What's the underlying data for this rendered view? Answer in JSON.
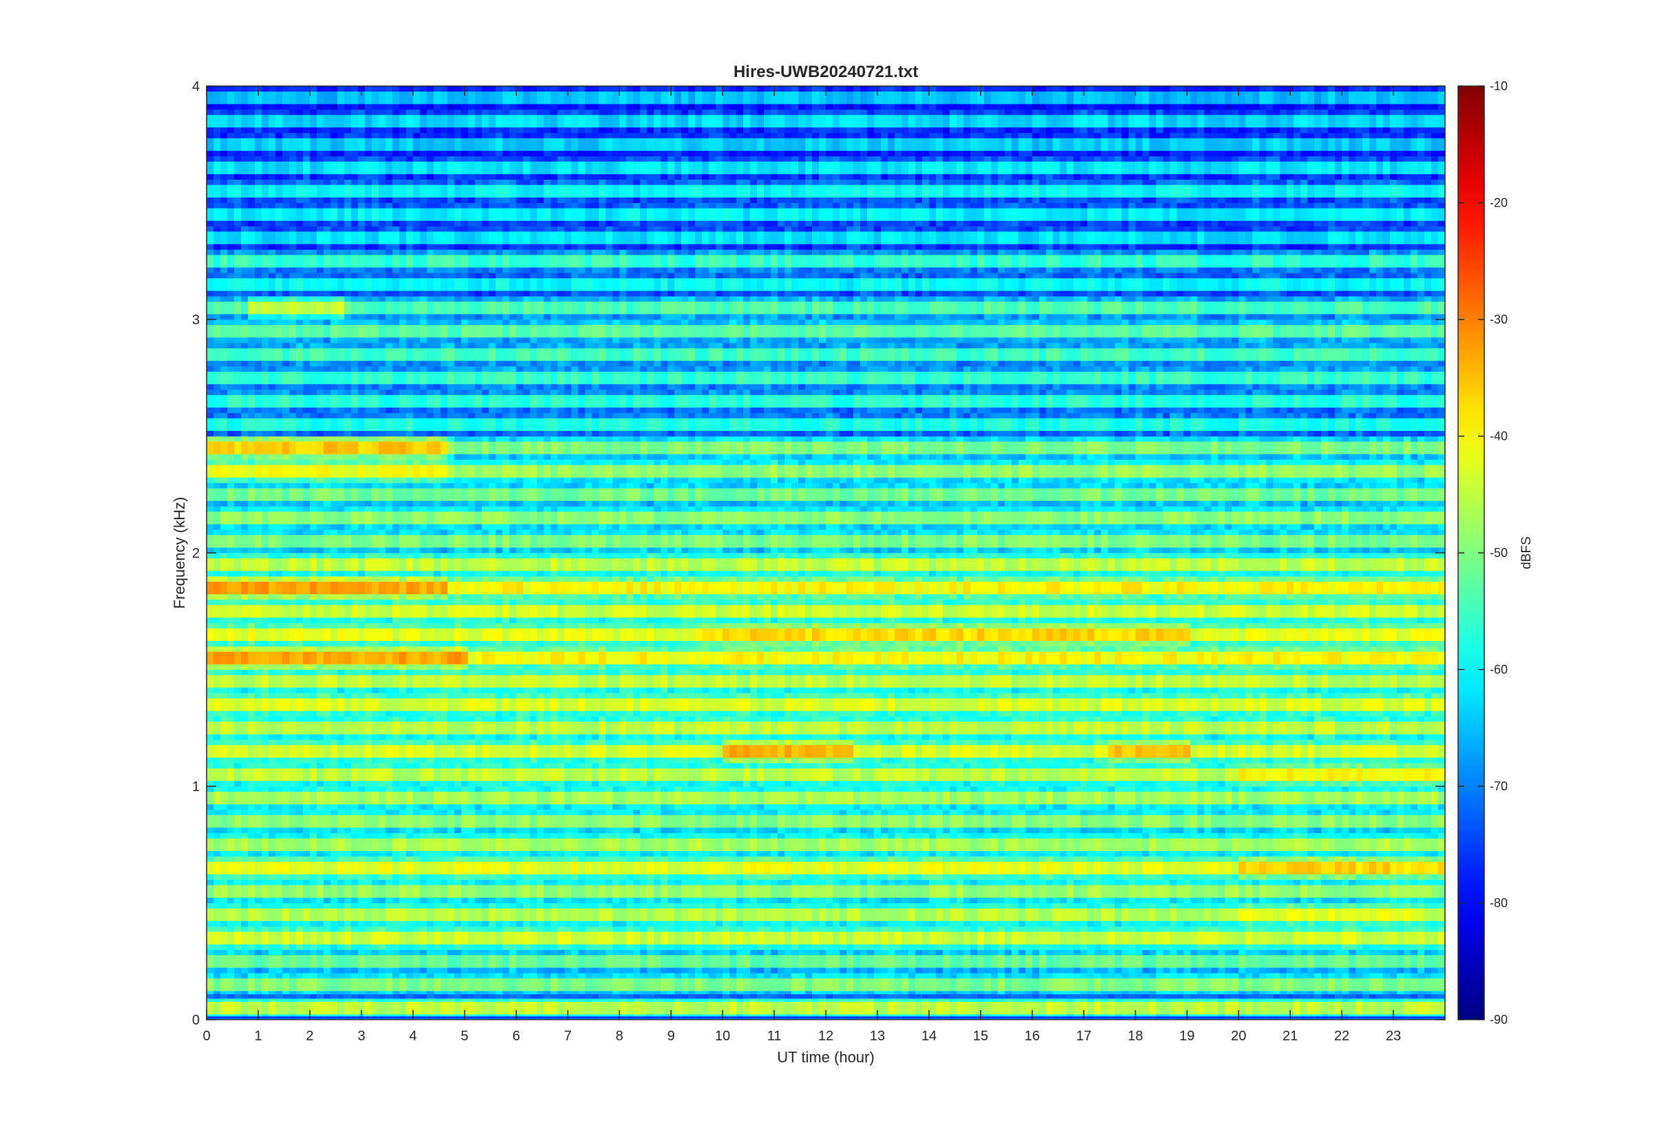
{
  "chart_data": {
    "type": "heatmap",
    "title": "Hires-UWB20240721.txt",
    "xlabel": "UT time (hour)",
    "ylabel": "Frequency (kHz)",
    "xlim": [
      0,
      24
    ],
    "ylim": [
      0,
      4
    ],
    "x_ticks": [
      0,
      1,
      2,
      3,
      4,
      5,
      6,
      7,
      8,
      9,
      10,
      11,
      12,
      13,
      14,
      15,
      16,
      17,
      18,
      19,
      20,
      21,
      22,
      23
    ],
    "y_ticks": [
      0,
      1,
      2,
      3,
      4
    ],
    "colormap": "jet",
    "colorbar": {
      "label": "dBFS",
      "clim": [
        -90,
        -10
      ],
      "ticks": [
        -10,
        -20,
        -30,
        -40,
        -50,
        -60,
        -70,
        -80,
        -90
      ]
    },
    "grid": false,
    "band_spacing_khz": 0.1,
    "band_levels_dbfs": [
      {
        "freq_khz": 0.05,
        "level": -45
      },
      {
        "freq_khz": 0.15,
        "level": -50
      },
      {
        "freq_khz": 0.25,
        "level": -52
      },
      {
        "freq_khz": 0.35,
        "level": -44
      },
      {
        "freq_khz": 0.45,
        "level": -46
      },
      {
        "freq_khz": 0.55,
        "level": -48
      },
      {
        "freq_khz": 0.65,
        "level": -42
      },
      {
        "freq_khz": 0.75,
        "level": -47
      },
      {
        "freq_khz": 0.85,
        "level": -49
      },
      {
        "freq_khz": 0.95,
        "level": -47
      },
      {
        "freq_khz": 1.05,
        "level": -45
      },
      {
        "freq_khz": 1.15,
        "level": -43
      },
      {
        "freq_khz": 1.25,
        "level": -45
      },
      {
        "freq_khz": 1.35,
        "level": -43
      },
      {
        "freq_khz": 1.45,
        "level": -45
      },
      {
        "freq_khz": 1.55,
        "level": -40
      },
      {
        "freq_khz": 1.65,
        "level": -42
      },
      {
        "freq_khz": 1.75,
        "level": -44
      },
      {
        "freq_khz": 1.85,
        "level": -40
      },
      {
        "freq_khz": 1.95,
        "level": -45
      },
      {
        "freq_khz": 2.05,
        "level": -50
      },
      {
        "freq_khz": 2.15,
        "level": -49
      },
      {
        "freq_khz": 2.25,
        "level": -51
      },
      {
        "freq_khz": 2.35,
        "level": -48
      },
      {
        "freq_khz": 2.45,
        "level": -50
      },
      {
        "freq_khz": 2.55,
        "level": -58
      },
      {
        "freq_khz": 2.65,
        "level": -57
      },
      {
        "freq_khz": 2.75,
        "level": -56
      },
      {
        "freq_khz": 2.85,
        "level": -55
      },
      {
        "freq_khz": 2.95,
        "level": -53
      },
      {
        "freq_khz": 3.05,
        "level": -54
      },
      {
        "freq_khz": 3.15,
        "level": -60
      },
      {
        "freq_khz": 3.25,
        "level": -56
      },
      {
        "freq_khz": 3.35,
        "level": -62
      },
      {
        "freq_khz": 3.45,
        "level": -61
      },
      {
        "freq_khz": 3.55,
        "level": -60
      },
      {
        "freq_khz": 3.65,
        "level": -62
      },
      {
        "freq_khz": 3.75,
        "level": -64
      },
      {
        "freq_khz": 3.85,
        "level": -63
      },
      {
        "freq_khz": 3.95,
        "level": -65
      }
    ],
    "hot_spots": [
      {
        "t": [
          0,
          4.6
        ],
        "f": 2.45,
        "level": -36
      },
      {
        "t": [
          0,
          4.6
        ],
        "f": 2.35,
        "level": -41
      },
      {
        "t": [
          0,
          4.6
        ],
        "f": 1.85,
        "level": -33
      },
      {
        "t": [
          0,
          5
        ],
        "f": 1.55,
        "level": -33
      },
      {
        "t": [
          0.8,
          2.6
        ],
        "f": 3.05,
        "level": -44
      },
      {
        "t": [
          10,
          12.5
        ],
        "f": 1.15,
        "level": -34
      },
      {
        "t": [
          17.5,
          19
        ],
        "f": 1.15,
        "level": -36
      },
      {
        "t": [
          20,
          24
        ],
        "f": 0.65,
        "level": -37
      },
      {
        "t": [
          9.5,
          19
        ],
        "f": 1.65,
        "level": -37
      },
      {
        "t": [
          20,
          24
        ],
        "f": 1.05,
        "level": -40
      },
      {
        "t": [
          20,
          23.5
        ],
        "f": 0.45,
        "level": -42
      }
    ]
  }
}
